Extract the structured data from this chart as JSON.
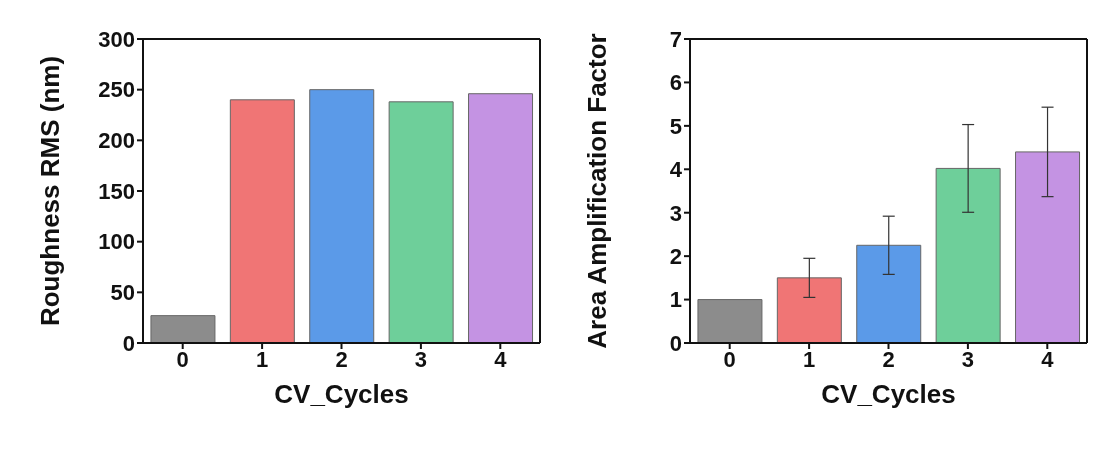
{
  "chart_data": [
    {
      "type": "bar",
      "xlabel": "CV_Cycles",
      "ylabel": "Roughness RMS (nm)",
      "categories": [
        "0",
        "1",
        "2",
        "3",
        "4"
      ],
      "values": [
        27,
        240,
        250,
        238,
        246
      ],
      "colors": [
        "#8c8c8c",
        "#f07575",
        "#5b9ae8",
        "#6ecf9a",
        "#c493e3"
      ],
      "ylim": [
        0,
        300
      ],
      "yticks": [
        0,
        50,
        100,
        150,
        200,
        250,
        300
      ],
      "grid": false,
      "legend": false
    },
    {
      "type": "bar",
      "xlabel": "CV_Cycles",
      "ylabel": "Area Amplification Factor",
      "categories": [
        "0",
        "1",
        "2",
        "3",
        "4"
      ],
      "values": [
        1.0,
        1.5,
        2.25,
        4.02,
        4.4
      ],
      "errors": [
        null,
        0.45,
        0.67,
        1.01,
        1.03
      ],
      "colors": [
        "#8c8c8c",
        "#f07575",
        "#5b9ae8",
        "#6ecf9a",
        "#c493e3"
      ],
      "ylim": [
        0,
        7
      ],
      "yticks": [
        0,
        1,
        2,
        3,
        4,
        5,
        6,
        7
      ],
      "grid": false,
      "legend": false
    }
  ]
}
